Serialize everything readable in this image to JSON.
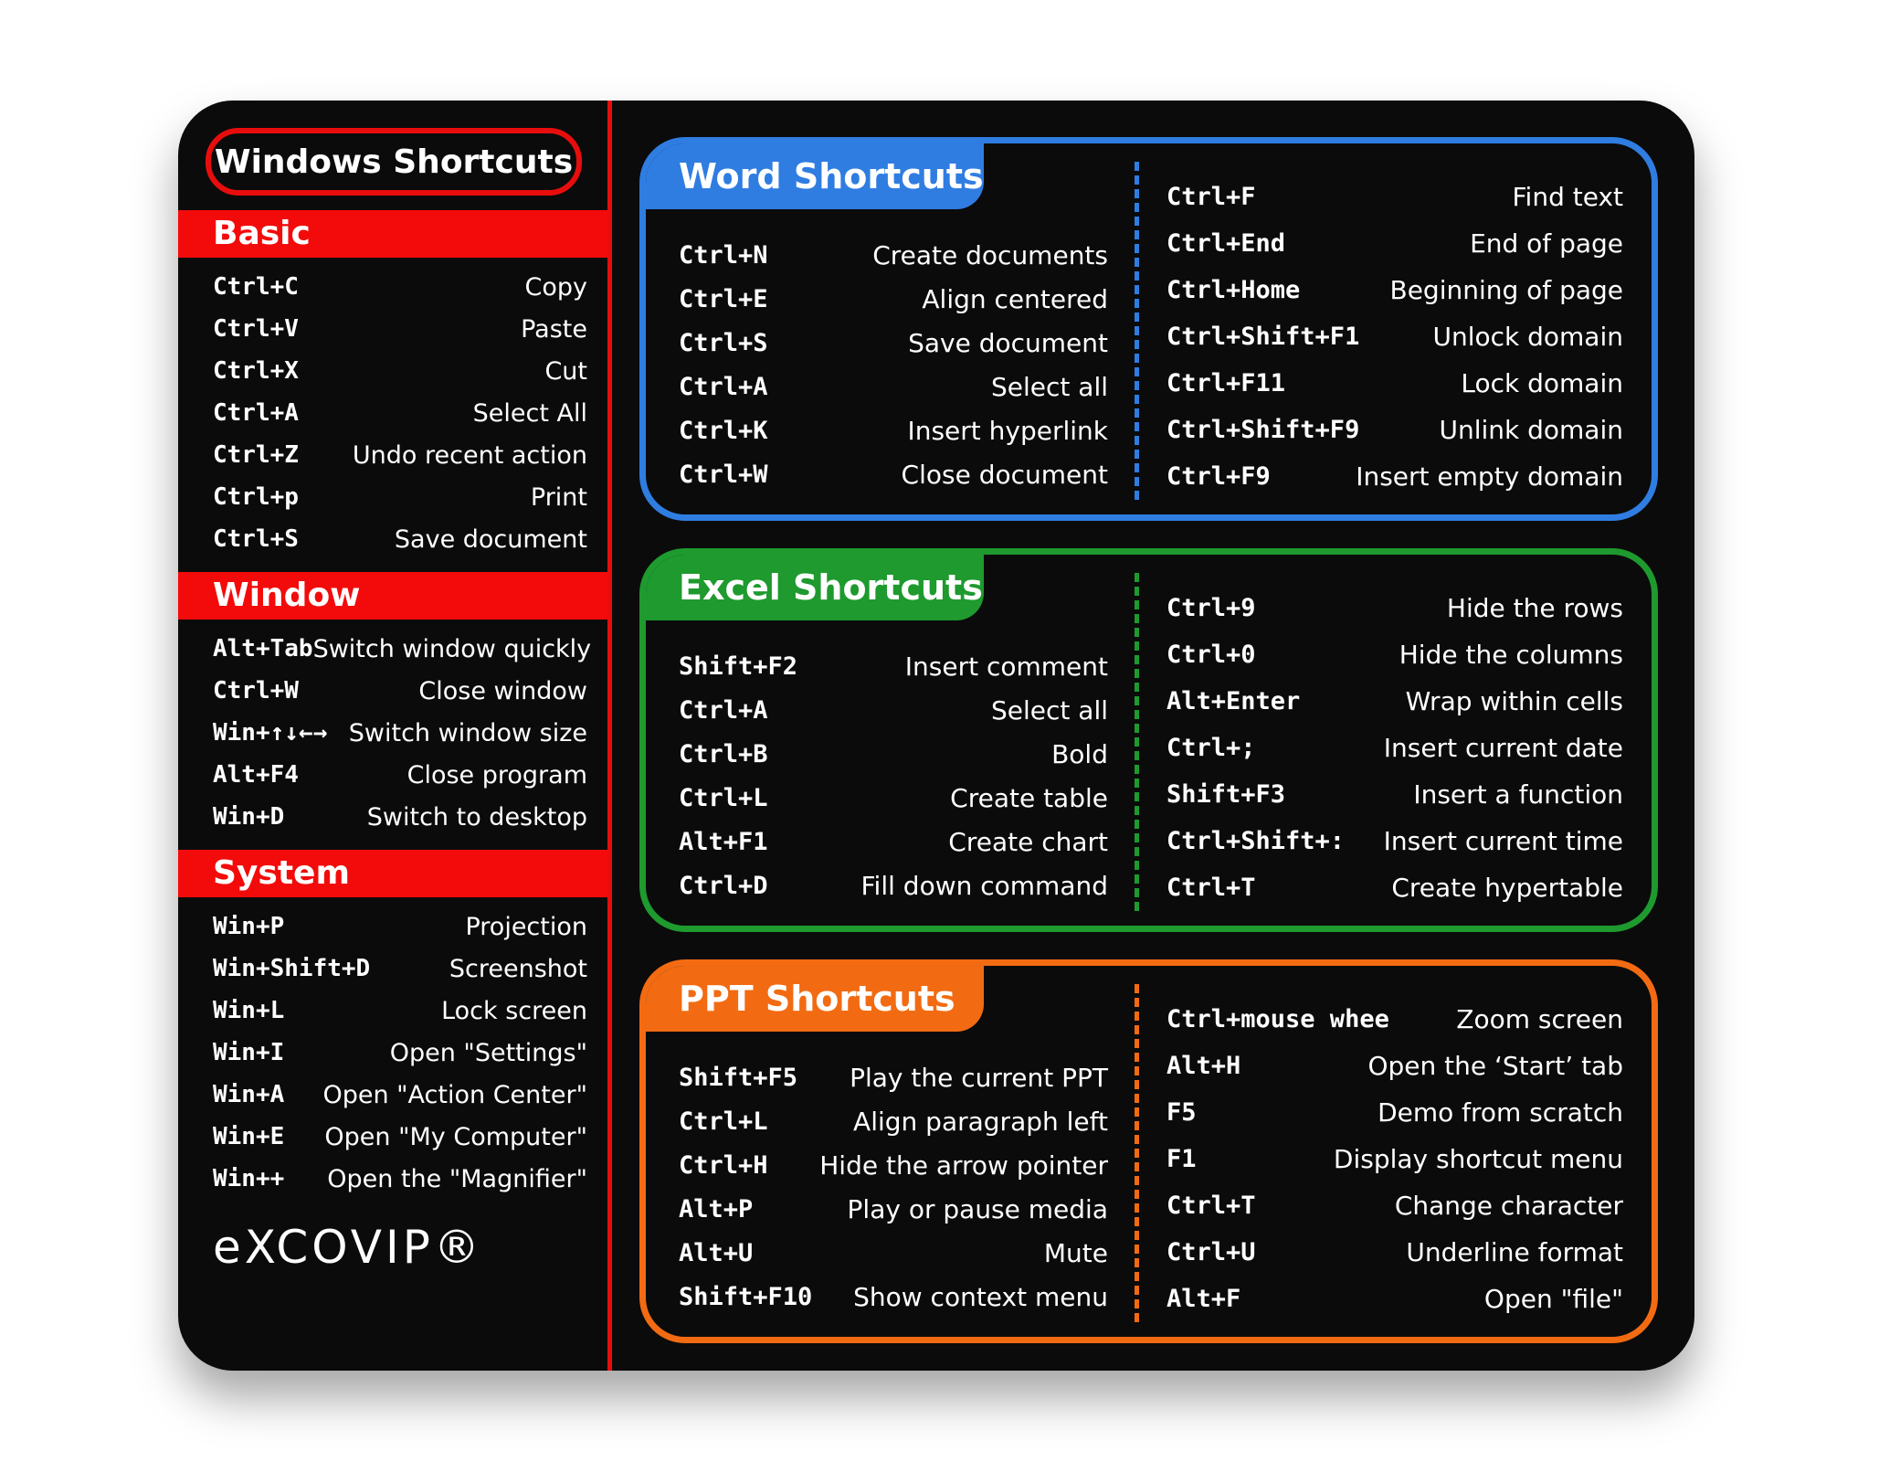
{
  "windows": {
    "title": "Windows Shortcuts",
    "sections": [
      {
        "name": "Basic",
        "items": [
          [
            "Ctrl+C",
            "Copy"
          ],
          [
            "Ctrl+V",
            "Paste"
          ],
          [
            "Ctrl+X",
            "Cut"
          ],
          [
            "Ctrl+A",
            "Select All"
          ],
          [
            "Ctrl+Z",
            "Undo recent action"
          ],
          [
            "Ctrl+p",
            "Print"
          ],
          [
            "Ctrl+S",
            "Save document"
          ]
        ]
      },
      {
        "name": "Window",
        "items": [
          [
            "Alt+Tab",
            "Switch window quickly"
          ],
          [
            "Ctrl+W",
            "Close window"
          ],
          [
            "Win+↑↓←→",
            "Switch window size"
          ],
          [
            "Alt+F4",
            "Close program"
          ],
          [
            "Win+D",
            "Switch to desktop"
          ]
        ]
      },
      {
        "name": "System",
        "items": [
          [
            "Win+P",
            "Projection"
          ],
          [
            "Win+Shift+D",
            "Screenshot"
          ],
          [
            "Win+L",
            "Lock screen"
          ],
          [
            "Win+I",
            "Open \"Settings\""
          ],
          [
            "Win+A",
            "Open \"Action Center\""
          ],
          [
            "Win+E",
            "Open \"My Computer\""
          ],
          [
            "Win++",
            "Open the \"Magnifier\""
          ]
        ]
      }
    ],
    "brand": "eXCOVIP®"
  },
  "panels": [
    {
      "title": "Word Shortcuts",
      "color": "#2f7de1",
      "left": [
        [
          "Ctrl+N",
          "Create documents"
        ],
        [
          "Ctrl+E",
          "Align centered"
        ],
        [
          "Ctrl+S",
          "Save document"
        ],
        [
          "Ctrl+A",
          "Select all"
        ],
        [
          "Ctrl+K",
          "Insert hyperlink"
        ],
        [
          "Ctrl+W",
          "Close document"
        ]
      ],
      "right": [
        [
          "Ctrl+F",
          "Find text"
        ],
        [
          "Ctrl+End",
          "End of page"
        ],
        [
          "Ctrl+Home",
          "Beginning of page"
        ],
        [
          "Ctrl+Shift+F1",
          "Unlock domain"
        ],
        [
          "Ctrl+F11",
          "Lock domain"
        ],
        [
          "Ctrl+Shift+F9",
          "Unlink domain"
        ],
        [
          "Ctrl+F9",
          "Insert empty domain"
        ]
      ]
    },
    {
      "title": "Excel Shortcuts",
      "color": "#1e9a2e",
      "left": [
        [
          "Shift+F2",
          "Insert comment"
        ],
        [
          "Ctrl+A",
          "Select all"
        ],
        [
          "Ctrl+B",
          "Bold"
        ],
        [
          "Ctrl+L",
          "Create table"
        ],
        [
          "Alt+F1",
          "Create chart"
        ],
        [
          "Ctrl+D",
          "Fill down command"
        ]
      ],
      "right": [
        [
          "Ctrl+9",
          "Hide the rows"
        ],
        [
          "Ctrl+0",
          "Hide the columns"
        ],
        [
          "Alt+Enter",
          "Wrap within cells"
        ],
        [
          "Ctrl+;",
          "Insert current date"
        ],
        [
          "Shift+F3",
          "Insert a function"
        ],
        [
          "Ctrl+Shift+:",
          "Insert current time"
        ],
        [
          "Ctrl+T",
          "Create hypertable"
        ]
      ]
    },
    {
      "title": "PPT Shortcuts",
      "color": "#f26b12",
      "left": [
        [
          "Shift+F5",
          "Play the current PPT"
        ],
        [
          "Ctrl+L",
          "Align paragraph left"
        ],
        [
          "Ctrl+H",
          "Hide the arrow pointer"
        ],
        [
          "Alt+P",
          "Play or pause media"
        ],
        [
          "Alt+U",
          "Mute"
        ],
        [
          "Shift+F10",
          "Show context menu"
        ]
      ],
      "right": [
        [
          "Ctrl+mouse whee",
          "Zoom screen"
        ],
        [
          "Alt+H",
          "Open the ‘Start’ tab"
        ],
        [
          "F5",
          "Demo from scratch"
        ],
        [
          "F1",
          "Display shortcut menu"
        ],
        [
          "Ctrl+T",
          "Change character"
        ],
        [
          "Ctrl+U",
          "Underline format"
        ],
        [
          "Alt+F",
          "Open \"file\""
        ]
      ]
    }
  ]
}
